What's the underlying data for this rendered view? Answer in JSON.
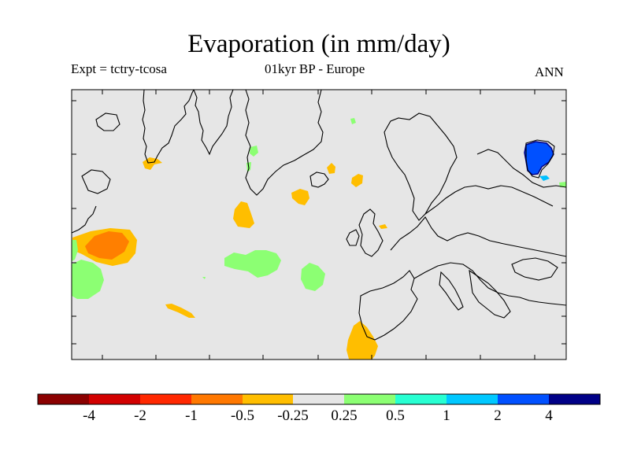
{
  "title": "Evaporation (in mm/day)",
  "subtitle_left": "Expt = tctry-tcosa",
  "subtitle_center": "01kyr BP - Europe",
  "subtitle_right": "ANN",
  "colors": {
    "background": "#e6e6e6",
    "coast": "#000000",
    "neg_0_25": "#ffbe00",
    "neg_0_5": "#ff7f00",
    "pos_0_25": "#8cff73",
    "pos_1": "#00bfff",
    "pos_2": "#0050ff",
    "pos_4": "#000087"
  },
  "colorbar": {
    "colors": [
      "#8b0000",
      "#d20000",
      "#ff2800",
      "#ff7800",
      "#ffbe00",
      "#e6e6e6",
      "#8cff73",
      "#28ffd2",
      "#00c8ff",
      "#0050ff",
      "#000087"
    ],
    "labels": [
      "-4",
      "-2",
      "-1",
      "-0.5",
      "-0.25",
      "0.25",
      "0.5",
      "1",
      "2",
      "4"
    ]
  }
}
